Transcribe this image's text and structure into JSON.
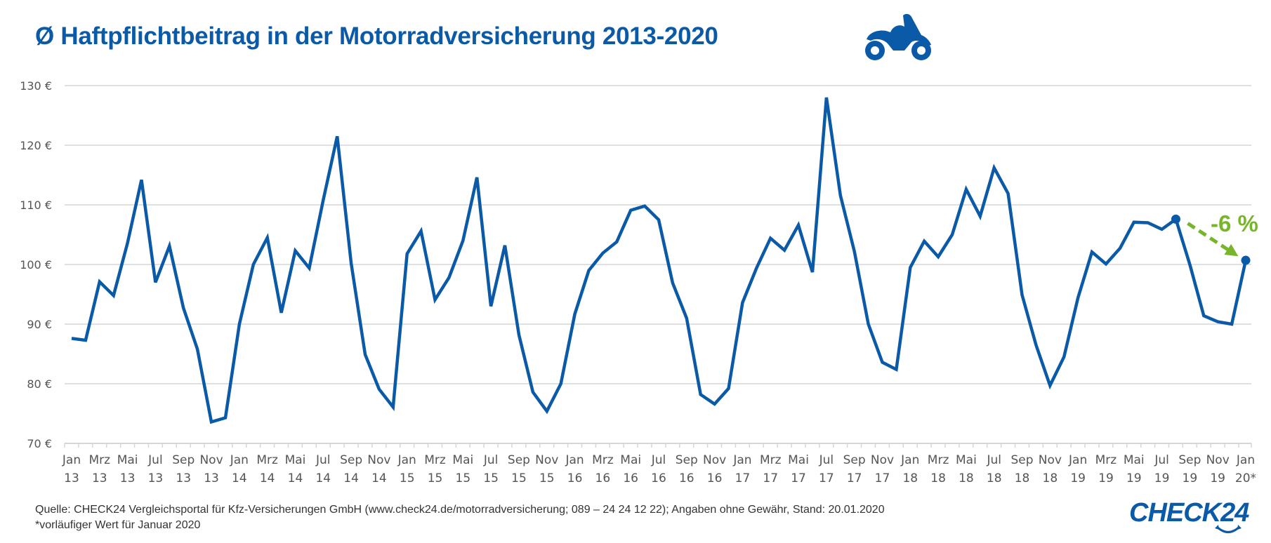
{
  "header": {
    "title": "Ø Haftpflichtbeitrag in der Motorradversicherung 2013-2020",
    "icon": "motorcycle-icon"
  },
  "footer": {
    "source": "Quelle: CHECK24 Vergleichsportal für Kfz-Versicherungen GmbH (www.check24.de/motorradversicherung; 089 – 24 24 12 22); Angaben ohne Gewähr, Stand: 20.01.2020",
    "note": "*vorläufiger Wert für Januar 2020",
    "logo": "CHECK24"
  },
  "colors": {
    "line": "#0a5aa8",
    "title": "#0a5aa8",
    "annotation": "#77b52a",
    "grid": "#d6d6d6",
    "label": "#555555"
  },
  "chart_data": {
    "type": "line",
    "title": "Ø Haftpflichtbeitrag in der Motorradversicherung 2013-2020",
    "xlabel": "",
    "ylabel": "",
    "ylim": [
      70,
      130
    ],
    "yticks": [
      70,
      80,
      90,
      100,
      110,
      120,
      130
    ],
    "ytick_labels": [
      "70 €",
      "80 €",
      "90 €",
      "100 €",
      "110 €",
      "120 €",
      "130 €"
    ],
    "grid": true,
    "x_labels": [
      {
        "m": "Jan",
        "y": "13"
      },
      {
        "m": "Mrz",
        "y": "13"
      },
      {
        "m": "Mai",
        "y": "13"
      },
      {
        "m": "Jul",
        "y": "13"
      },
      {
        "m": "Sep",
        "y": "13"
      },
      {
        "m": "Nov",
        "y": "13"
      },
      {
        "m": "Jan",
        "y": "14"
      },
      {
        "m": "Mrz",
        "y": "14"
      },
      {
        "m": "Mai",
        "y": "14"
      },
      {
        "m": "Jul",
        "y": "14"
      },
      {
        "m": "Sep",
        "y": "14"
      },
      {
        "m": "Nov",
        "y": "14"
      },
      {
        "m": "Jan",
        "y": "15"
      },
      {
        "m": "Mrz",
        "y": "15"
      },
      {
        "m": "Mai",
        "y": "15"
      },
      {
        "m": "Jul",
        "y": "15"
      },
      {
        "m": "Sep",
        "y": "15"
      },
      {
        "m": "Nov",
        "y": "15"
      },
      {
        "m": "Jan",
        "y": "16"
      },
      {
        "m": "Mrz",
        "y": "16"
      },
      {
        "m": "Mai",
        "y": "16"
      },
      {
        "m": "Jul",
        "y": "16"
      },
      {
        "m": "Sep",
        "y": "16"
      },
      {
        "m": "Nov",
        "y": "16"
      },
      {
        "m": "Jan",
        "y": "17"
      },
      {
        "m": "Mrz",
        "y": "17"
      },
      {
        "m": "Mai",
        "y": "17"
      },
      {
        "m": "Jul",
        "y": "17"
      },
      {
        "m": "Sep",
        "y": "17"
      },
      {
        "m": "Nov",
        "y": "17"
      },
      {
        "m": "Jan",
        "y": "18"
      },
      {
        "m": "Mrz",
        "y": "18"
      },
      {
        "m": "Mai",
        "y": "18"
      },
      {
        "m": "Jul",
        "y": "18"
      },
      {
        "m": "Sep",
        "y": "18"
      },
      {
        "m": "Nov",
        "y": "18"
      },
      {
        "m": "Jan",
        "y": "19"
      },
      {
        "m": "Mrz",
        "y": "19"
      },
      {
        "m": "Mai",
        "y": "19"
      },
      {
        "m": "Jul",
        "y": "19"
      },
      {
        "m": "Sep",
        "y": "19"
      },
      {
        "m": "Nov",
        "y": "19"
      },
      {
        "m": "Jan",
        "y": "20*"
      }
    ],
    "x_label_every_n_months": 2,
    "series": [
      {
        "name": "Ø Haftpflichtbeitrag (€)",
        "start": "Jan 2013",
        "end": "Jan 2020",
        "values": [
          87.6,
          87.3,
          97.1,
          94.8,
          103.6,
          114.2,
          97.0,
          103.1,
          92.7,
          85.8,
          73.6,
          74.3,
          90.0,
          100.0,
          104.5,
          91.9,
          102.3,
          99.4,
          110.8,
          121.5,
          100.2,
          84.9,
          79.1,
          76.1,
          101.8,
          105.6,
          94.1,
          97.8,
          104.0,
          114.6,
          93.0,
          103.2,
          88.2,
          78.6,
          75.4,
          80.0,
          91.7,
          99.0,
          101.9,
          103.8,
          109.1,
          109.8,
          107.5,
          96.9,
          91.0,
          78.2,
          76.6,
          79.2,
          93.6,
          99.4,
          104.4,
          102.4,
          106.6,
          98.7,
          128.0,
          111.6,
          102.2,
          90.0,
          83.6,
          82.4,
          99.5,
          103.9,
          101.3,
          105.0,
          112.6,
          108.1,
          116.2,
          111.9,
          94.9,
          86.5,
          79.7,
          84.5,
          94.4,
          102.1,
          100.1,
          102.7,
          107.1,
          107.0,
          105.9,
          107.6,
          100.0,
          91.4,
          90.4,
          90.0,
          100.7
        ]
      }
    ],
    "highlight_points": [
      {
        "label": "Aug 19",
        "index": 79,
        "value": 107.6
      },
      {
        "label": "Jan 20*",
        "index": 84,
        "value": 100.7
      }
    ],
    "annotation": {
      "text": "-6 %",
      "from_index": 79,
      "to_index": 84,
      "style": "dashed-arrow"
    },
    "legend": "none"
  }
}
